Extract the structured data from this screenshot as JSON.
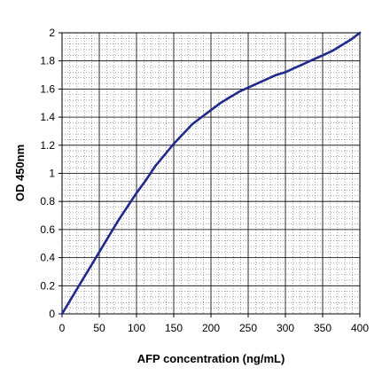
{
  "chart_data": {
    "type": "line",
    "title": "",
    "xlabel": "AFP concentration (ng/mL)",
    "ylabel": "OD 450nm",
    "xlim": [
      0,
      400
    ],
    "ylim": [
      0,
      2
    ],
    "x_ticks": [
      0,
      50,
      100,
      150,
      200,
      250,
      300,
      350,
      400
    ],
    "y_ticks": [
      0,
      0.2,
      0.4,
      0.6,
      0.8,
      1,
      1.2,
      1.4,
      1.6,
      1.8,
      2
    ],
    "x_tick_labels": [
      "0",
      "50",
      "100",
      "150",
      "200",
      "250",
      "300",
      "350",
      "400"
    ],
    "y_tick_labels": [
      "0",
      "0.2",
      "0.4",
      "0.6",
      "0.8",
      "1",
      "1.2",
      "1.4",
      "1.6",
      "1.8",
      "2"
    ],
    "grid": true,
    "minor_grid": true,
    "series": [
      {
        "color": "#1f2a8c",
        "x": [
          0,
          12.5,
          25,
          37.5,
          50,
          62.5,
          75,
          87.5,
          100,
          112.5,
          125,
          137.5,
          150,
          162.5,
          175,
          187.5,
          200,
          212.5,
          225,
          237.5,
          250,
          262.5,
          275,
          287.5,
          300,
          312.5,
          325,
          337.5,
          350,
          362.5,
          375,
          387.5,
          400
        ],
        "y": [
          0,
          0.11,
          0.22,
          0.33,
          0.44,
          0.55,
          0.66,
          0.76,
          0.86,
          0.95,
          1.05,
          1.13,
          1.21,
          1.28,
          1.35,
          1.4,
          1.45,
          1.5,
          1.54,
          1.58,
          1.61,
          1.64,
          1.67,
          1.7,
          1.72,
          1.75,
          1.78,
          1.81,
          1.84,
          1.87,
          1.91,
          1.95,
          2.0
        ]
      }
    ]
  }
}
